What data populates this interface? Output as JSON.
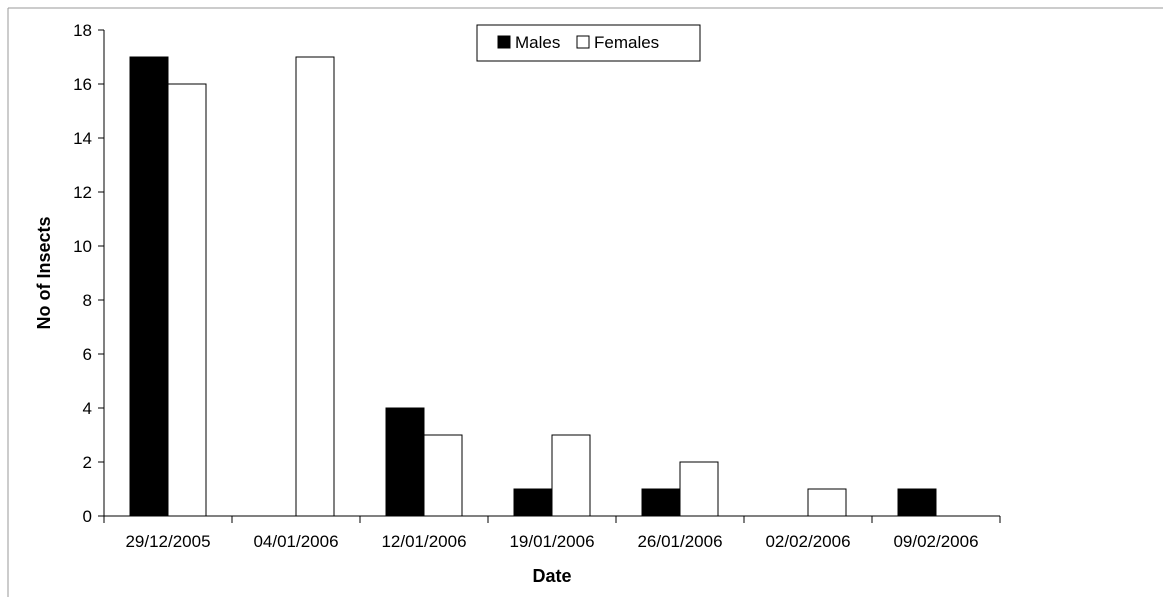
{
  "chart_data": {
    "type": "bar",
    "categories": [
      "29/12/2005",
      "04/01/2006",
      "12/01/2006",
      "19/01/2006",
      "26/01/2006",
      "02/02/2006",
      "09/02/2006"
    ],
    "series": [
      {
        "name": "Males",
        "values": [
          17,
          0,
          4,
          1,
          1,
          0,
          1
        ],
        "color": "#000000"
      },
      {
        "name": "Females",
        "values": [
          16,
          17,
          3,
          3,
          2,
          1,
          0
        ],
        "color": "#ffffff"
      }
    ],
    "xlabel": "Date",
    "ylabel": "No of Insects",
    "ylim": [
      0,
      18
    ],
    "yticks": [
      "0",
      "2",
      "4",
      "6",
      "8",
      "10",
      "12",
      "14",
      "16",
      "18"
    ],
    "grid": false,
    "legend_position": "top-center"
  }
}
